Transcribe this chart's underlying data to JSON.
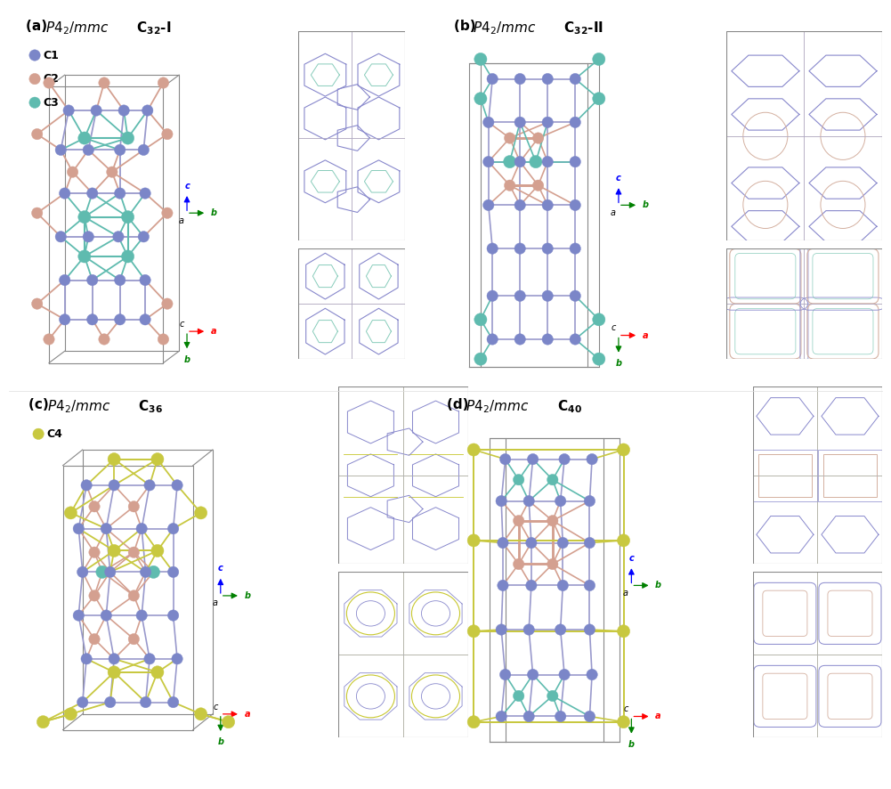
{
  "bg_color": "#ffffff",
  "c1_color": "#7b86c8",
  "c2_color": "#d4a090",
  "c3_color": "#5fbbaf",
  "c4_color": "#c8c840",
  "bond_blue": "#9999cc",
  "bond_pink": "#d4a090",
  "bond_teal": "#5fbbaf",
  "bond_yellow": "#c8c840",
  "box_color": "#888888",
  "grid_color": "#aaaaaa",
  "proj_blue": "#8888cc",
  "proj_pink": "#d4b0a0",
  "proj_teal": "#88ccbb",
  "proj_yellow": "#c8c830",
  "panel_labels": [
    "(a)",
    "(b)",
    "(c)",
    "(d)"
  ],
  "panel_formulas": [
    "P4_2/mmc C_{32}-I",
    "P4_2/mmc C_{32}-II",
    "P4_2/mmc C_{36}",
    "P4_2/mmc C_{40}"
  ],
  "legend_a": [
    [
      "C1",
      "#7b86c8"
    ],
    [
      "C2",
      "#d4a090"
    ],
    [
      "C3",
      "#5fbbaf"
    ]
  ],
  "legend_c": [
    [
      "C4",
      "#c8c840"
    ]
  ]
}
